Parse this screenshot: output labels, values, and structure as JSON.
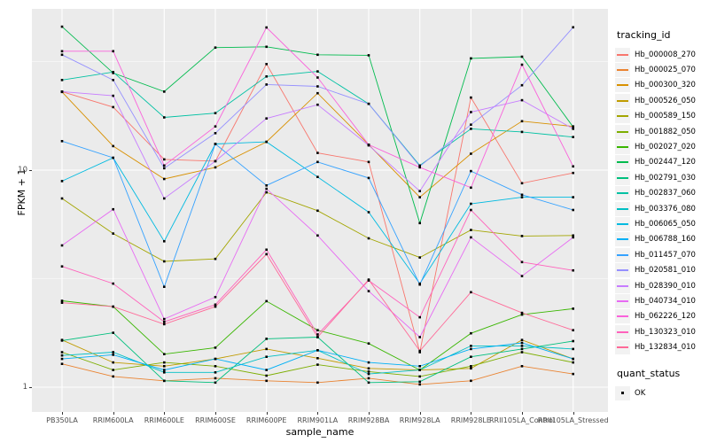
{
  "figure": {
    "y_axis": {
      "title": "FPKM + 1",
      "tick_labels": [
        "10",
        "1"
      ],
      "tick_values": [
        10,
        1
      ]
    },
    "x_axis": {
      "title": "sample_name"
    },
    "legend": {
      "tracking_title": "tracking_id",
      "quant_title": "quant_status",
      "quant_ok_label": "OK"
    },
    "colors": {
      "panel_bg": "#EBEBEB",
      "grid": "#FFFFFF",
      "legend_key_bg": "#F2F2F2",
      "tick_text": "#4D4D4D",
      "point": "#000000"
    }
  },
  "chart_data": {
    "type": "line",
    "y_scale": "log10",
    "ylabel": "FPKM + 1",
    "xlabel": "sample_name",
    "ylim": [
      0.77,
      55
    ],
    "y_major_ticks": [
      1,
      10
    ],
    "y_minor_ticks": [
      3.162,
      31.623
    ],
    "grid": true,
    "legend_position": "right",
    "point_legend": {
      "title": "quant_status",
      "label": "OK"
    },
    "x_categories": [
      "PB350LA",
      "RRIM600LA",
      "RRIM600LE",
      "RRIM600SE",
      "RRIM600PE",
      "RRIM901LA",
      "RRIM928BA",
      "RRIM928LA",
      "RRIM928LE",
      "RRII105LA_Control",
      "RRII105LA_Stressed"
    ],
    "series": [
      {
        "name": "Hb_000008_270",
        "color": "#F8766D",
        "values": [
          23,
          19.5,
          11.2,
          11,
          30.8,
          12,
          10.9,
          1.45,
          21.6,
          8.7,
          9.7
        ]
      },
      {
        "name": "Hb_000025_070",
        "color": "#EA8331",
        "values": [
          1.28,
          1.12,
          1.07,
          1.1,
          1.07,
          1.05,
          1.1,
          1.03,
          1.07,
          1.25,
          1.15
        ]
      },
      {
        "name": "Hb_000300_320",
        "color": "#D89000",
        "values": [
          22.9,
          12.9,
          9.1,
          10.3,
          13.5,
          22.6,
          13.1,
          7.5,
          11.9,
          16.8,
          15.9
        ]
      },
      {
        "name": "Hb_000526_050",
        "color": "#C09B00",
        "values": [
          1.65,
          1.3,
          1.25,
          1.35,
          1.5,
          1.36,
          1.22,
          1.2,
          1.22,
          1.65,
          1.35
        ]
      },
      {
        "name": "Hb_000589_150",
        "color": "#A3A500",
        "values": [
          7.4,
          5.1,
          3.8,
          3.9,
          7.9,
          6.5,
          4.85,
          3.96,
          5.3,
          4.97,
          5.0
        ]
      },
      {
        "name": "Hb_001882_050",
        "color": "#7CAE00",
        "values": [
          1.45,
          1.2,
          1.3,
          1.25,
          1.13,
          1.27,
          1.18,
          1.12,
          1.25,
          1.45,
          1.3
        ]
      },
      {
        "name": "Hb_002027_020",
        "color": "#39B600",
        "values": [
          2.5,
          2.35,
          1.42,
          1.52,
          2.49,
          1.83,
          1.59,
          1.2,
          1.77,
          2.16,
          2.3
        ]
      },
      {
        "name": "Hb_002447_120",
        "color": "#00BB4E",
        "values": [
          45.8,
          28,
          23,
          36.7,
          37,
          34,
          33.8,
          5.7,
          32.7,
          33.3,
          15.8
        ]
      },
      {
        "name": "Hb_002791_030",
        "color": "#00BF7D",
        "values": [
          1.64,
          1.78,
          1.07,
          1.05,
          1.67,
          1.7,
          1.05,
          1.06,
          1.38,
          1.5,
          1.63
        ]
      },
      {
        "name": "Hb_002837_060",
        "color": "#00C1A3",
        "values": [
          26,
          28.3,
          17.5,
          18.3,
          27,
          28.5,
          20.2,
          10.5,
          15.5,
          15,
          14.2
        ]
      },
      {
        "name": "Hb_003376_080",
        "color": "#00BFC4",
        "values": [
          1.4,
          1.45,
          1.17,
          1.17,
          1.38,
          1.48,
          1.15,
          1.2,
          1.55,
          1.55,
          1.5
        ]
      },
      {
        "name": "Hb_006065_050",
        "color": "#00BAE0",
        "values": [
          8.9,
          11.4,
          4.7,
          13.2,
          13.5,
          9.3,
          6.4,
          3.0,
          7.0,
          7.5,
          7.5
        ]
      },
      {
        "name": "Hb_006788_160",
        "color": "#00B0F6",
        "values": [
          1.35,
          1.41,
          1.2,
          1.35,
          1.2,
          1.48,
          1.3,
          1.25,
          1.5,
          1.6,
          1.35
        ]
      },
      {
        "name": "Hb_011457_070",
        "color": "#35A2FF",
        "values": [
          13.6,
          11.4,
          2.9,
          13.2,
          8.5,
          10.9,
          9.2,
          2.97,
          9.9,
          7.7,
          6.55
        ]
      },
      {
        "name": "Hb_020581_010",
        "color": "#9590FF",
        "values": [
          34,
          26,
          10.2,
          14.8,
          24.8,
          24.3,
          20.2,
          10.4,
          16.2,
          24.6,
          45.5
        ]
      },
      {
        "name": "Hb_028390_010",
        "color": "#C77CFF",
        "values": [
          23,
          22,
          7.4,
          11,
          17.3,
          20,
          13,
          8.0,
          18.5,
          21,
          15.5
        ]
      },
      {
        "name": "Hb_040734_010",
        "color": "#E76BF3",
        "values": [
          4.5,
          6.6,
          2.06,
          2.6,
          8.2,
          5.0,
          2.77,
          1.7,
          4.9,
          3.25,
          4.9
        ]
      },
      {
        "name": "Hb_062226_120",
        "color": "#FA62DB",
        "values": [
          35.3,
          35.3,
          10.5,
          15.9,
          45.4,
          26.7,
          13.1,
          10.3,
          8.3,
          30.6,
          10.4
        ]
      },
      {
        "name": "Hb_130323_010",
        "color": "#FF62BC",
        "values": [
          3.6,
          3.0,
          2.0,
          2.4,
          4.3,
          1.75,
          3.1,
          2.1,
          6.55,
          3.77,
          3.45
        ]
      },
      {
        "name": "Hb_132834_010",
        "color": "#FF6A98",
        "values": [
          2.45,
          2.35,
          1.95,
          2.35,
          4.1,
          1.7,
          3.13,
          1.47,
          2.74,
          2.2,
          1.83
        ]
      }
    ]
  }
}
